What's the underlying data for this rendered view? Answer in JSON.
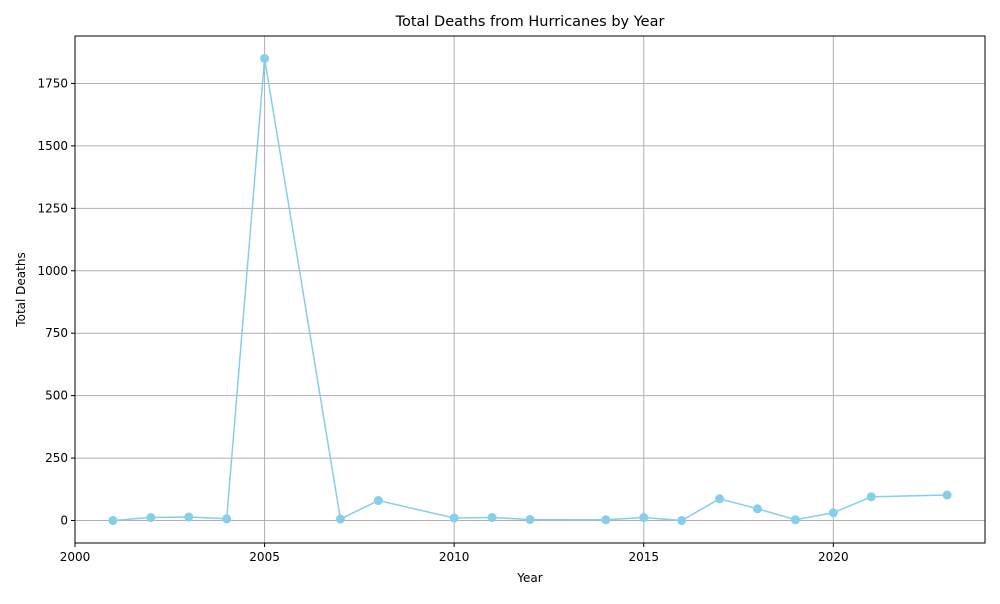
{
  "chart_data": {
    "type": "line",
    "title": "Total Deaths from Hurricanes by Year",
    "xlabel": "Year",
    "ylabel": "Total Deaths",
    "xlim": [
      2000,
      2024
    ],
    "ylim": [
      -90,
      1940
    ],
    "x_ticks": [
      2000,
      2005,
      2010,
      2015,
      2020
    ],
    "y_ticks": [
      0,
      250,
      500,
      750,
      1000,
      1250,
      1500,
      1750
    ],
    "grid": true,
    "line_color": "#87ceeb",
    "marker": "circle",
    "series": [
      {
        "x": [
          2001,
          2002,
          2003,
          2004,
          2005,
          2007,
          2008,
          2010,
          2011,
          2012,
          2014,
          2015,
          2016,
          2017,
          2018,
          2019,
          2020,
          2021,
          2023
        ],
        "y": [
          0,
          12,
          14,
          7,
          1850,
          6,
          80,
          10,
          12,
          4,
          3,
          12,
          0,
          87,
          47,
          3,
          31,
          95,
          102
        ]
      }
    ]
  }
}
